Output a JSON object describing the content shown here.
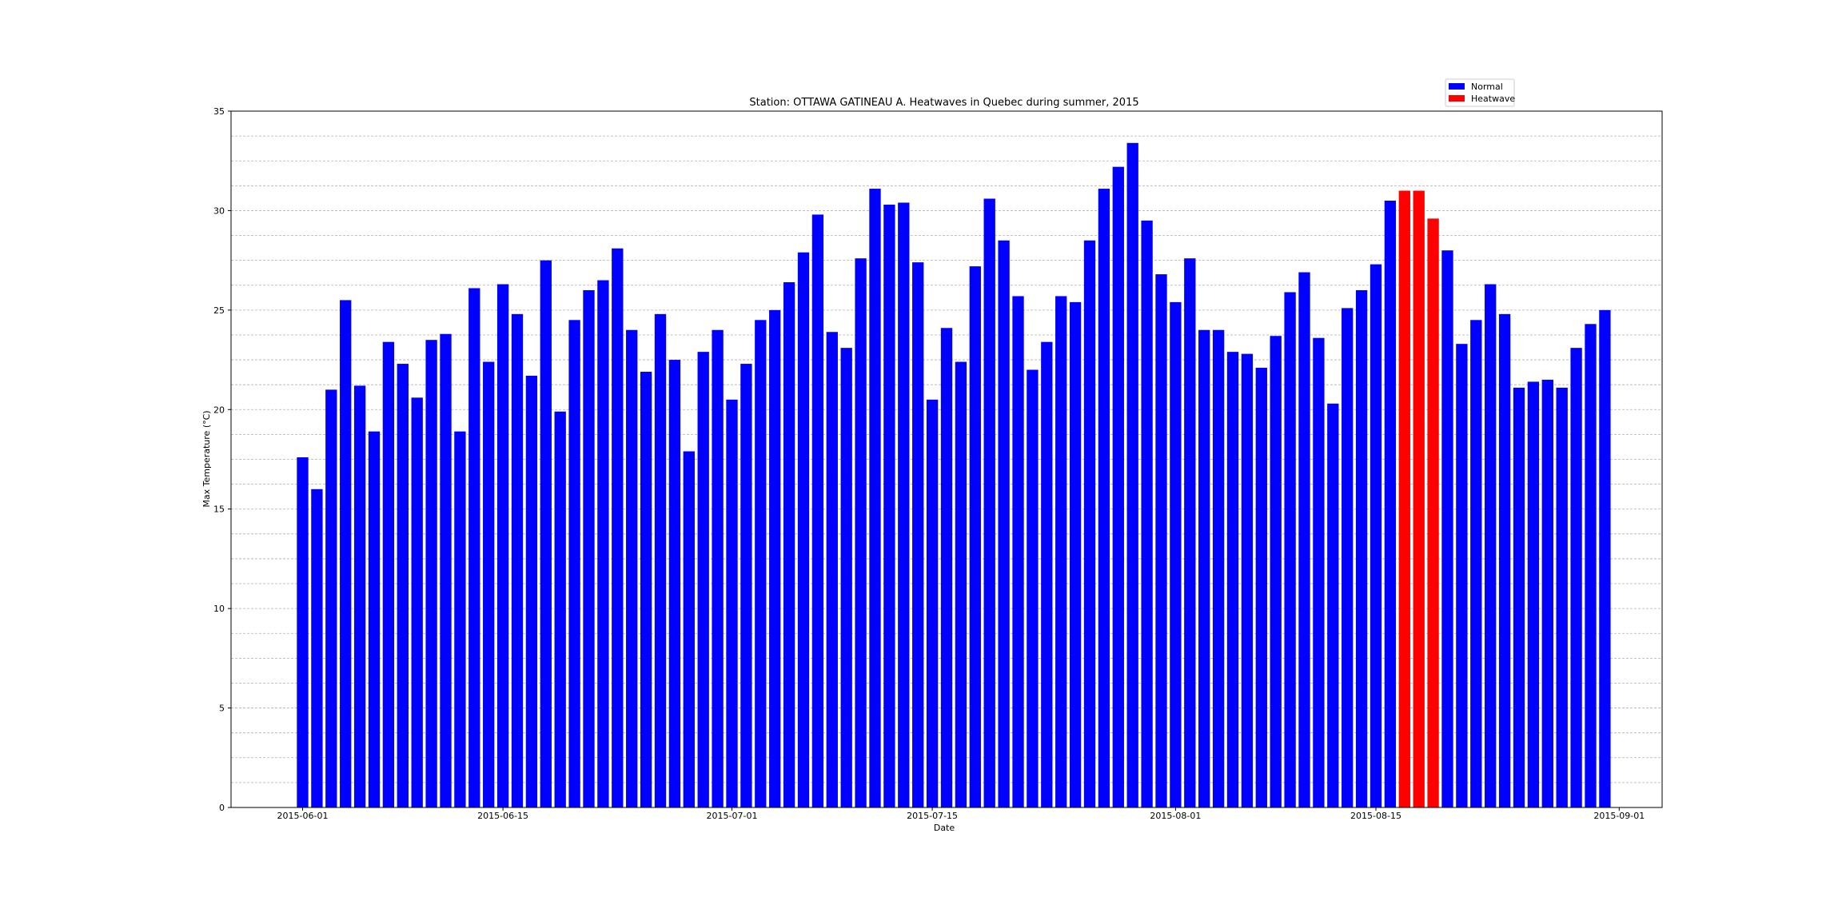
{
  "chart_data": {
    "type": "bar",
    "title": "Station: OTTAWA GATINEAU A. Heatwaves in Quebec during summer, 2015",
    "xlabel": "Date",
    "ylabel": "Max Temperature (°C)",
    "ylim": [
      0,
      35
    ],
    "xlim": [
      "2015-05-27",
      "2015-09-04"
    ],
    "y_ticks": [
      0,
      5,
      10,
      15,
      20,
      25,
      30,
      35
    ],
    "x_ticks": [
      "2015-06-01",
      "2015-06-15",
      "2015-07-01",
      "2015-07-15",
      "2015-08-01",
      "2015-08-15",
      "2015-09-01"
    ],
    "grid": "horizontal dashed",
    "legend_position": "top-right (above plot)",
    "series": [
      {
        "name": "Normal",
        "color": "#0000ff"
      },
      {
        "name": "Heatwave",
        "color": "#ff0000"
      }
    ],
    "x": [
      "2015-06-01",
      "2015-06-02",
      "2015-06-03",
      "2015-06-04",
      "2015-06-05",
      "2015-06-06",
      "2015-06-07",
      "2015-06-08",
      "2015-06-09",
      "2015-06-10",
      "2015-06-11",
      "2015-06-12",
      "2015-06-13",
      "2015-06-14",
      "2015-06-15",
      "2015-06-16",
      "2015-06-17",
      "2015-06-18",
      "2015-06-19",
      "2015-06-20",
      "2015-06-21",
      "2015-06-22",
      "2015-06-23",
      "2015-06-24",
      "2015-06-25",
      "2015-06-26",
      "2015-06-27",
      "2015-06-28",
      "2015-06-29",
      "2015-06-30",
      "2015-07-01",
      "2015-07-02",
      "2015-07-03",
      "2015-07-04",
      "2015-07-05",
      "2015-07-06",
      "2015-07-07",
      "2015-07-08",
      "2015-07-09",
      "2015-07-10",
      "2015-07-11",
      "2015-07-12",
      "2015-07-13",
      "2015-07-14",
      "2015-07-15",
      "2015-07-16",
      "2015-07-17",
      "2015-07-18",
      "2015-07-19",
      "2015-07-20",
      "2015-07-21",
      "2015-07-22",
      "2015-07-23",
      "2015-07-24",
      "2015-07-25",
      "2015-07-26",
      "2015-07-27",
      "2015-07-28",
      "2015-07-29",
      "2015-07-30",
      "2015-07-31",
      "2015-08-01",
      "2015-08-02",
      "2015-08-03",
      "2015-08-04",
      "2015-08-05",
      "2015-08-06",
      "2015-08-07",
      "2015-08-08",
      "2015-08-09",
      "2015-08-10",
      "2015-08-11",
      "2015-08-12",
      "2015-08-13",
      "2015-08-14",
      "2015-08-15",
      "2015-08-16",
      "2015-08-17",
      "2015-08-18",
      "2015-08-19",
      "2015-08-20",
      "2015-08-21",
      "2015-08-22",
      "2015-08-23",
      "2015-08-24",
      "2015-08-25",
      "2015-08-26",
      "2015-08-27",
      "2015-08-28",
      "2015-08-29",
      "2015-08-30",
      "2015-08-31"
    ],
    "values": [
      17.6,
      16.0,
      21.0,
      25.5,
      21.2,
      18.9,
      23.4,
      22.3,
      20.6,
      23.5,
      23.8,
      18.9,
      26.1,
      22.4,
      26.3,
      24.8,
      21.7,
      27.5,
      19.9,
      24.5,
      26.0,
      26.5,
      28.1,
      24.0,
      21.9,
      24.8,
      22.5,
      17.9,
      22.9,
      24.0,
      20.5,
      22.3,
      24.5,
      25.0,
      26.4,
      27.9,
      29.8,
      23.9,
      23.1,
      27.6,
      31.1,
      30.3,
      30.4,
      27.4,
      20.5,
      24.1,
      22.4,
      27.2,
      30.6,
      28.5,
      25.7,
      22.0,
      23.4,
      25.7,
      25.4,
      28.5,
      31.1,
      32.2,
      33.4,
      29.5,
      26.8,
      25.4,
      27.6,
      24.0,
      24.0,
      22.9,
      22.8,
      22.1,
      23.7,
      25.9,
      26.9,
      23.6,
      20.3,
      25.1,
      26.0,
      27.3,
      30.5,
      31.0,
      31.0,
      29.6,
      28.0,
      23.3,
      24.5,
      26.3,
      24.8,
      21.1,
      21.4,
      21.5,
      21.1,
      23.1,
      24.3,
      25.0
    ],
    "categories": [
      "Normal",
      "Normal",
      "Normal",
      "Normal",
      "Normal",
      "Normal",
      "Normal",
      "Normal",
      "Normal",
      "Normal",
      "Normal",
      "Normal",
      "Normal",
      "Normal",
      "Normal",
      "Normal",
      "Normal",
      "Normal",
      "Normal",
      "Normal",
      "Normal",
      "Normal",
      "Normal",
      "Normal",
      "Normal",
      "Normal",
      "Normal",
      "Normal",
      "Normal",
      "Normal",
      "Normal",
      "Normal",
      "Normal",
      "Normal",
      "Normal",
      "Normal",
      "Normal",
      "Normal",
      "Normal",
      "Normal",
      "Normal",
      "Normal",
      "Normal",
      "Normal",
      "Normal",
      "Normal",
      "Normal",
      "Normal",
      "Normal",
      "Normal",
      "Normal",
      "Normal",
      "Normal",
      "Normal",
      "Normal",
      "Normal",
      "Normal",
      "Normal",
      "Normal",
      "Normal",
      "Normal",
      "Normal",
      "Normal",
      "Normal",
      "Normal",
      "Normal",
      "Normal",
      "Normal",
      "Normal",
      "Normal",
      "Normal",
      "Normal",
      "Normal",
      "Normal",
      "Normal",
      "Normal",
      "Normal",
      "Heatwave",
      "Heatwave",
      "Heatwave",
      "Normal",
      "Normal",
      "Normal",
      "Normal",
      "Normal",
      "Normal",
      "Normal",
      "Normal",
      "Normal",
      "Normal",
      "Normal",
      "Normal"
    ]
  }
}
